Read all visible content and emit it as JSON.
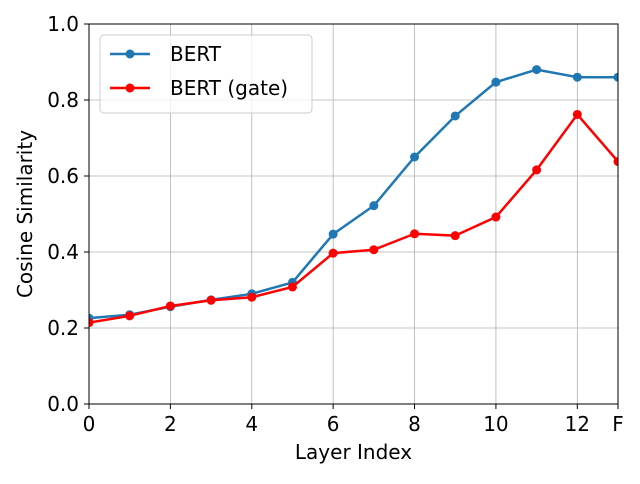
{
  "chart_data": {
    "type": "line",
    "title": "",
    "xlabel": "Layer Index",
    "ylabel": "Cosine Similarity",
    "x": [
      0,
      1,
      2,
      3,
      4,
      5,
      6,
      7,
      8,
      9,
      10,
      11,
      12,
      13
    ],
    "xticks": [
      {
        "value": 0,
        "label": "0"
      },
      {
        "value": 2,
        "label": "2"
      },
      {
        "value": 4,
        "label": "4"
      },
      {
        "value": 6,
        "label": "6"
      },
      {
        "value": 8,
        "label": "8"
      },
      {
        "value": 10,
        "label": "10"
      },
      {
        "value": 12,
        "label": "12"
      },
      {
        "value": 13,
        "label": "F"
      }
    ],
    "yticks": [
      {
        "value": 0.0,
        "label": "0.0"
      },
      {
        "value": 0.2,
        "label": "0.2"
      },
      {
        "value": 0.4,
        "label": "0.4"
      },
      {
        "value": 0.6,
        "label": "0.6"
      },
      {
        "value": 0.8,
        "label": "0.8"
      },
      {
        "value": 1.0,
        "label": "1.0"
      }
    ],
    "xlim": [
      0,
      13
    ],
    "ylim": [
      0,
      1.0
    ],
    "grid": true,
    "legend_position": "top-left",
    "series": [
      {
        "name": "BERT",
        "color": "#1f77b4",
        "values": [
          0.226,
          0.235,
          0.256,
          0.274,
          0.29,
          0.32,
          0.447,
          0.522,
          0.65,
          0.758,
          0.847,
          0.88,
          0.86,
          0.86
        ]
      },
      {
        "name": "BERT (gate)",
        "color": "#ff0000",
        "values": [
          0.214,
          0.232,
          0.258,
          0.273,
          0.281,
          0.308,
          0.397,
          0.406,
          0.448,
          0.443,
          0.492,
          0.616,
          0.762,
          0.638
        ]
      }
    ]
  }
}
